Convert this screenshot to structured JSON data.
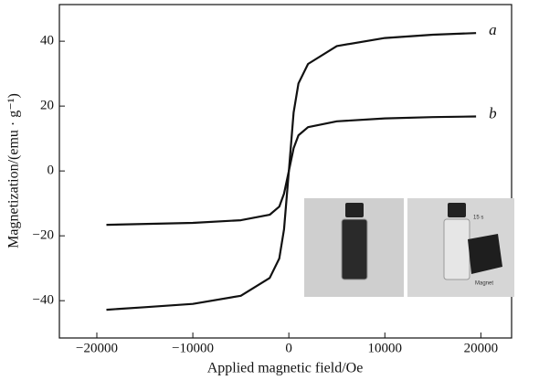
{
  "chart_data": {
    "type": "line",
    "xlabel": "Applied magnetic field/Oe",
    "ylabel": "Magnetization/(emu · g⁻¹)",
    "xlim": [
      -23900,
      23200
    ],
    "ylim": [
      -51.5,
      51.3
    ],
    "xticks": [
      {
        "value": -20000,
        "label": "−20000"
      },
      {
        "value": -10000,
        "label": "−10000"
      },
      0,
      10000,
      20000
    ],
    "yticks": [
      {
        "value": -40,
        "label": "−40"
      },
      {
        "value": -20,
        "label": "−20"
      },
      0,
      20,
      40
    ],
    "series": [
      {
        "name": "a",
        "color": "#111111",
        "x": [
          -19000,
          -15000,
          -10000,
          -5000,
          -2000,
          -1000,
          -500,
          0,
          500,
          1000,
          2000,
          5000,
          10000,
          15000,
          19500
        ],
        "values": [
          -42.8,
          -42,
          -41,
          -38.5,
          -33,
          -27,
          -18,
          0,
          18,
          27,
          33,
          38.5,
          41,
          42,
          42.5
        ]
      },
      {
        "name": "b",
        "color": "#111111",
        "x": [
          -19000,
          -10000,
          -5000,
          -2000,
          -1000,
          -500,
          0,
          500,
          1000,
          2000,
          5000,
          10000,
          15000,
          19500
        ],
        "values": [
          -16.6,
          -16,
          -15.2,
          -13.5,
          -11,
          -7,
          0,
          7,
          11,
          13.5,
          15.3,
          16.2,
          16.6,
          16.8
        ]
      }
    ],
    "inset_labels": [
      "15 s",
      "Magnet"
    ]
  }
}
